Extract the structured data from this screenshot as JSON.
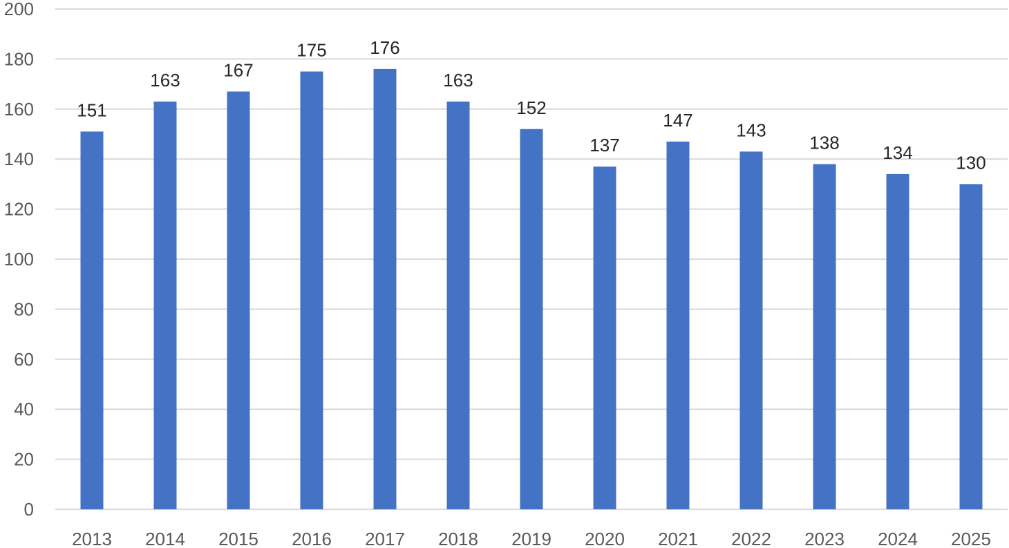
{
  "chart_data": {
    "type": "bar",
    "title": "",
    "xlabel": "",
    "ylabel": "",
    "categories": [
      "2013",
      "2014",
      "2015",
      "2016",
      "2017",
      "2018",
      "2019",
      "2020",
      "2021",
      "2022",
      "2023",
      "2024",
      "2025"
    ],
    "values": [
      151,
      163,
      167,
      175,
      176,
      163,
      152,
      137,
      147,
      143,
      138,
      134,
      130
    ],
    "ylim": [
      0,
      200
    ],
    "yticks": [
      0,
      20,
      40,
      60,
      80,
      100,
      120,
      140,
      160,
      180,
      200
    ],
    "grid": true,
    "legend": "none",
    "data_labels": true,
    "bar_color": "#4472c4"
  }
}
